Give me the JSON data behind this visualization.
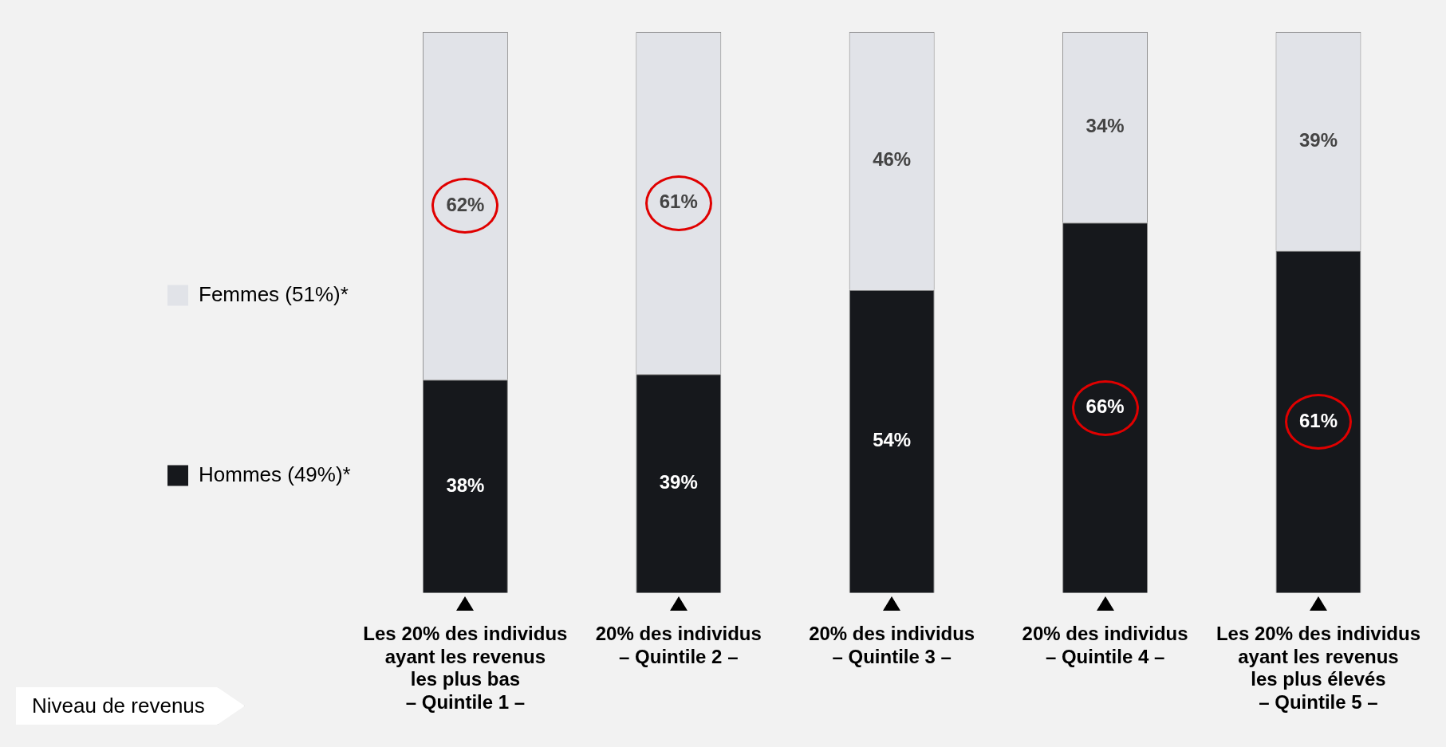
{
  "chart_data": {
    "type": "bar",
    "stacked": true,
    "annotations": [
      "Niveau de revenus"
    ],
    "categories": [
      "Les 20% des individus\nayant les revenus\nles plus bas\n– Quintile 1 –",
      "20% des individus\n– Quintile 2 –",
      "20% des individus\n– Quintile 3 –",
      "20% des individus\n– Quintile 4 –",
      "Les 20% des individus\nayant les revenus\nles plus élevés\n– Quintile 5 –"
    ],
    "series": [
      {
        "name": "Hommes (49%)*",
        "color": "#16181c",
        "values": [
          38,
          39,
          54,
          66,
          61
        ],
        "value_labels": [
          "38%",
          "39%",
          "54%",
          "66%",
          "61%"
        ]
      },
      {
        "name": "Femmes (51%)*",
        "color": "#e1e3e8",
        "values": [
          62,
          61,
          46,
          34,
          39
        ],
        "value_labels": [
          "62%",
          "61%",
          "46%",
          "34%",
          "39%"
        ]
      }
    ],
    "tick_labels": "x",
    "legend": "left",
    "grid": false
  }
}
